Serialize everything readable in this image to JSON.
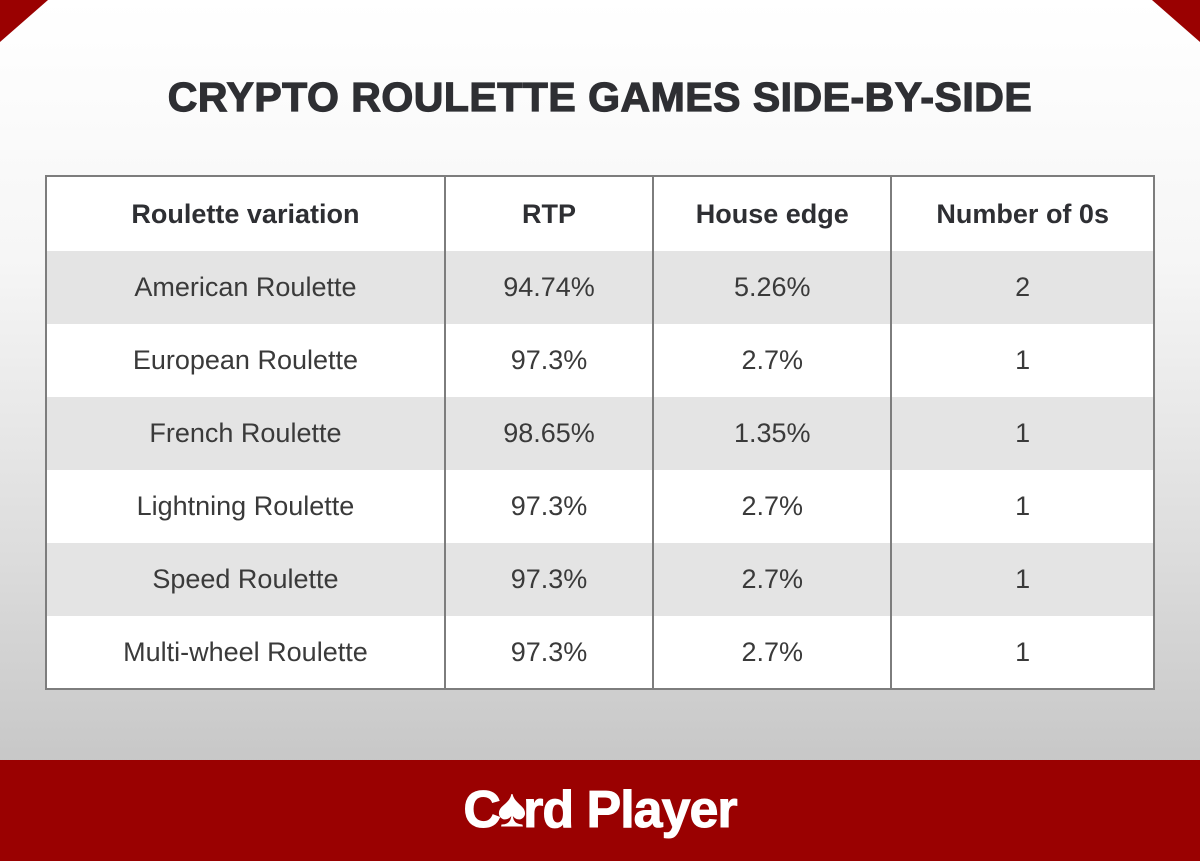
{
  "title": "CRYPTO ROULETTE GAMES SIDE-BY-SIDE",
  "chart_data": {
    "type": "table",
    "title": "CRYPTO ROULETTE GAMES SIDE-BY-SIDE",
    "columns": [
      "Roulette variation",
      "RTP",
      "House edge",
      "Number of 0s"
    ],
    "rows": [
      [
        "American Roulette",
        "94.74%",
        "5.26%",
        "2"
      ],
      [
        "European Roulette",
        "97.3%",
        "2.7%",
        "1"
      ],
      [
        "French Roulette",
        "98.65%",
        "1.35%",
        "1"
      ],
      [
        "Lightning Roulette",
        "97.3%",
        "2.7%",
        "1"
      ],
      [
        "Speed Roulette",
        "97.3%",
        "2.7%",
        "1"
      ],
      [
        "Multi-wheel Roulette",
        "97.3%",
        "2.7%",
        "1"
      ]
    ],
    "legend_position": "none",
    "grid": "column-separators-only"
  },
  "footer": {
    "logo_c": "C",
    "spade_glyph": "♠",
    "logo_rest": "rd Player"
  },
  "colors": {
    "brand_red": "#9a0101",
    "row_alt": "#e4e4e4",
    "table_border": "#7d7d7d",
    "title_text": "#2e2f33",
    "body_text": "#3a3a3a",
    "background_top": "#ffffff",
    "background_bottom": "#bdbdbd"
  }
}
